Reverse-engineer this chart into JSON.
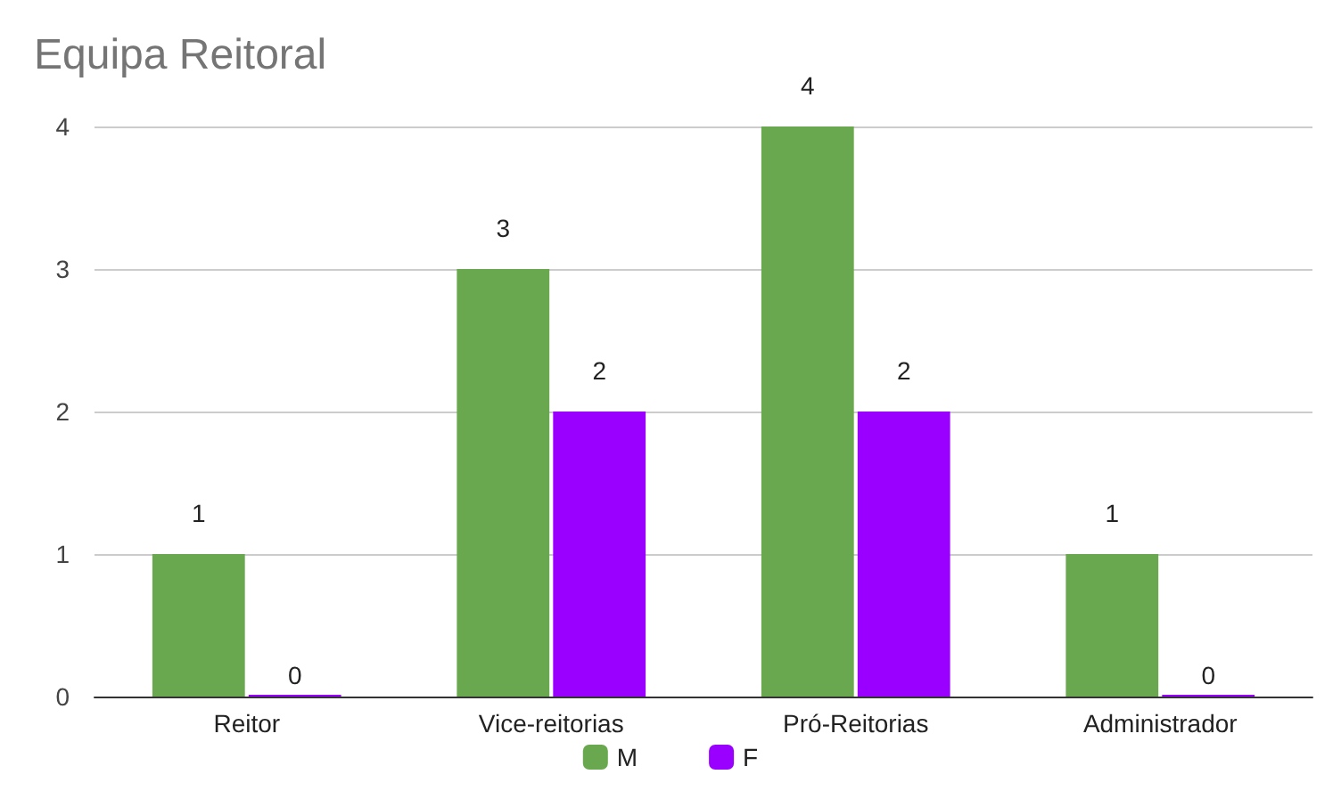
{
  "chart_data": {
    "type": "bar",
    "title": "Equipa Reitoral",
    "categories": [
      "Reitor",
      "Vice-reitorias",
      "Pró-Reitorias",
      "Administrador"
    ],
    "series": [
      {
        "name": "M",
        "color": "#6aa84f",
        "values": [
          1,
          3,
          4,
          1
        ]
      },
      {
        "name": "F",
        "color": "#9900ff",
        "values": [
          0,
          2,
          2,
          0
        ]
      }
    ],
    "ylim": [
      0,
      4
    ],
    "yticks": [
      0,
      1,
      2,
      3,
      4
    ],
    "grid": "y",
    "legend": "bottom",
    "data_labels": true
  }
}
